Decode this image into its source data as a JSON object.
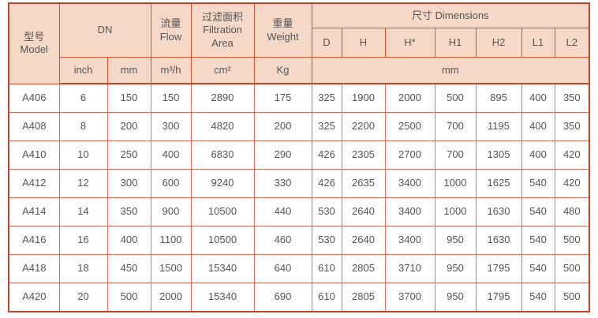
{
  "table": {
    "header": {
      "model": {
        "zh": "型号",
        "en": "Model"
      },
      "dn": {
        "label": "DN",
        "sub_inch": "inch",
        "sub_mm": "mm"
      },
      "flow": {
        "zh": "流量",
        "en": "Flow",
        "unit": "m³/h"
      },
      "filtration_area": {
        "zh": "过滤面积",
        "en_line1": "Filtration",
        "en_line2": "Area",
        "unit": "cm²"
      },
      "weight": {
        "zh": "重量",
        "en": "Weight",
        "unit": "Kg"
      },
      "dimensions": {
        "zh": "尺寸",
        "en": "Dimensions",
        "unit": "mm",
        "sub": [
          "D",
          "H",
          "H*",
          "H1",
          "H2",
          "L1",
          "L2"
        ]
      }
    },
    "rows": [
      {
        "model": "A406",
        "inch": "6",
        "mm": "150",
        "flow": "150",
        "area": "2890",
        "weight": "175",
        "dims": [
          "325",
          "1900",
          "2000",
          "500",
          "895",
          "400",
          "350"
        ]
      },
      {
        "model": "A408",
        "inch": "8",
        "mm": "200",
        "flow": "300",
        "area": "4820",
        "weight": "200",
        "dims": [
          "325",
          "2200",
          "2500",
          "700",
          "1195",
          "400",
          "350"
        ]
      },
      {
        "model": "A410",
        "inch": "10",
        "mm": "250",
        "flow": "400",
        "area": "6830",
        "weight": "290",
        "dims": [
          "426",
          "2305",
          "2700",
          "700",
          "1305",
          "400",
          "420"
        ]
      },
      {
        "model": "A412",
        "inch": "12",
        "mm": "300",
        "flow": "600",
        "area": "9240",
        "weight": "330",
        "dims": [
          "426",
          "2635",
          "3400",
          "1000",
          "1625",
          "540",
          "420"
        ]
      },
      {
        "model": "A414",
        "inch": "14",
        "mm": "350",
        "flow": "900",
        "area": "10500",
        "weight": "440",
        "dims": [
          "530",
          "2640",
          "3400",
          "1000",
          "1630",
          "540",
          "480"
        ]
      },
      {
        "model": "A416",
        "inch": "16",
        "mm": "400",
        "flow": "1100",
        "area": "10500",
        "weight": "460",
        "dims": [
          "530",
          "2640",
          "3400",
          "950",
          "1630",
          "540",
          "500"
        ]
      },
      {
        "model": "A418",
        "inch": "18",
        "mm": "450",
        "flow": "1500",
        "area": "15340",
        "weight": "640",
        "dims": [
          "610",
          "2805",
          "3710",
          "950",
          "1795",
          "540",
          "500"
        ]
      },
      {
        "model": "A420",
        "inch": "20",
        "mm": "500",
        "flow": "2000",
        "area": "15340",
        "weight": "690",
        "dims": [
          "610",
          "2805",
          "3700",
          "950",
          "1795",
          "540",
          "500"
        ]
      }
    ],
    "colors": {
      "header_bg": "#f6d8c6",
      "border_outer": "#c6452c",
      "border_header": "#d4542f",
      "border_body": "#e5705c",
      "text": "#4f4f4f"
    }
  }
}
